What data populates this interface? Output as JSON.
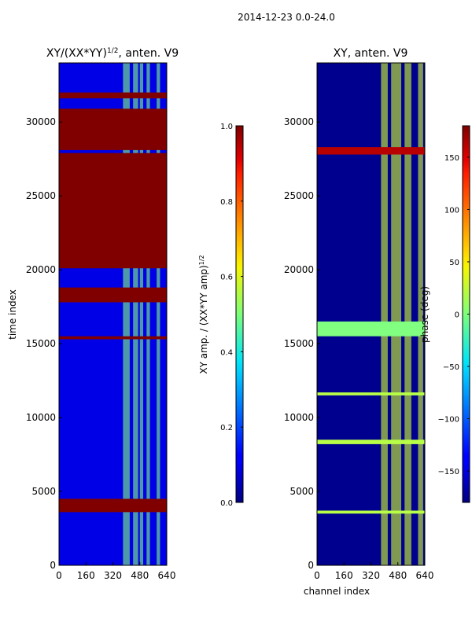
{
  "figure": {
    "suptitle": "2014-12-23 0.0-24.0"
  },
  "chart_data": [
    {
      "type": "heatmap",
      "title_main": "XY/(XX*YY)",
      "title_exp": "1/2",
      "title_rest": ", anten. V9",
      "xlabel": "",
      "ylabel": "time index",
      "xlim": [
        0,
        640
      ],
      "ylim": [
        0,
        34000
      ],
      "xticks": [
        0,
        160,
        320,
        480,
        640
      ],
      "yticks": [
        0,
        5000,
        10000,
        15000,
        20000,
        25000,
        30000
      ],
      "value_range": [
        0,
        1
      ],
      "colorbar": {
        "label_main": "XY amp. / (XX*YY amp)",
        "label_exp": "1/2",
        "ticks": [
          0.0,
          0.2,
          0.4,
          0.6,
          0.8,
          1.0
        ],
        "tick_labels": [
          "0.0",
          "0.2",
          "0.4",
          "0.6",
          "0.8",
          "1.0"
        ]
      },
      "background_value": 0.1,
      "bands": [
        {
          "y0": 3600,
          "y1": 4500,
          "value": 1.0
        },
        {
          "y0": 15300,
          "y1": 15500,
          "value": 1.0
        },
        {
          "y0": 17800,
          "y1": 18800,
          "value": 1.0
        },
        {
          "y0": 20100,
          "y1": 27900,
          "value": 1.0
        },
        {
          "y0": 28100,
          "y1": 30900,
          "value": 1.0
        },
        {
          "y0": 31600,
          "y1": 32000,
          "value": 1.0
        }
      ],
      "active_channels": [
        [
          380,
          420
        ],
        [
          440,
          470
        ],
        [
          480,
          500
        ],
        [
          520,
          540
        ],
        [
          580,
          600
        ]
      ],
      "active_value": 0.5
    },
    {
      "type": "heatmap",
      "title_main": "XY, anten. V9",
      "xlabel": "channel index",
      "ylabel": "",
      "xlim": [
        0,
        640
      ],
      "ylim": [
        0,
        34000
      ],
      "xticks": [
        0,
        160,
        320,
        480,
        640
      ],
      "yticks": [
        0,
        5000,
        10000,
        15000,
        20000,
        25000,
        30000
      ],
      "value_range": [
        -180,
        180
      ],
      "colorbar": {
        "label_main": "phase (deg)",
        "ticks": [
          -150,
          -100,
          -50,
          0,
          50,
          100,
          150
        ],
        "tick_labels": [
          "−150",
          "−100",
          "−50",
          "0",
          "50",
          "100",
          "150"
        ]
      },
      "background_value": -175,
      "bands": [
        {
          "y0": 27800,
          "y1": 28300,
          "value": 160
        },
        {
          "y0": 3500,
          "y1": 3700,
          "value": 20
        },
        {
          "y0": 8200,
          "y1": 8500,
          "value": 20
        },
        {
          "y0": 11500,
          "y1": 11700,
          "value": 20
        },
        {
          "y0": 15500,
          "y1": 16500,
          "value": 0
        }
      ],
      "active_channels": [
        [
          380,
          420
        ],
        [
          440,
          500
        ],
        [
          520,
          560
        ],
        [
          600,
          630
        ]
      ],
      "active_value": 30
    }
  ]
}
